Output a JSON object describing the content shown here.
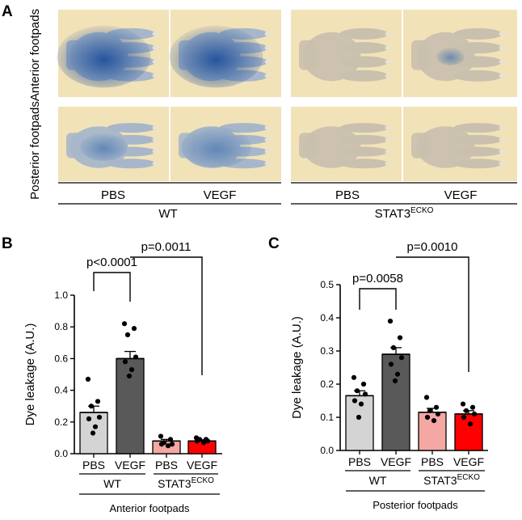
{
  "panelA": {
    "letter": "A",
    "rows": [
      "Anterior footpads",
      "Posterior footpads"
    ],
    "treatments": [
      "PBS",
      "VEGF",
      "PBS",
      "VEGF"
    ],
    "genotypes": [
      {
        "main": "WT",
        "sup": ""
      },
      {
        "main": "STAT3",
        "sup": "ECKO"
      }
    ],
    "photo_colors": {
      "background": "#f2e2b8",
      "paw_wt": "#a7b7c9",
      "paw_ko": "#c9c0ae",
      "dye_blue": "#2f5fa6"
    }
  },
  "chart_data": [
    {
      "type": "bar",
      "letter": "B",
      "ylabel": "Dye leakage (A.U.)",
      "ylim": [
        0,
        1.0
      ],
      "yticks": [
        "0.0",
        "0.2",
        "0.4",
        "0.6",
        "0.8",
        "1.0"
      ],
      "categories": [
        "PBS",
        "VEGF",
        "PBS",
        "VEGF"
      ],
      "groups": [
        {
          "main": "WT",
          "sup": ""
        },
        {
          "main": "STAT3",
          "sup": "ECKO"
        }
      ],
      "footer": "Anterior footpads",
      "values": [
        0.26,
        0.6,
        0.08,
        0.08
      ],
      "errors": [
        0.04,
        0.045,
        0.01,
        0.008
      ],
      "colors": [
        "#d4d4d4",
        "#595959",
        "#f4a7a3",
        "#ff0000"
      ],
      "points": [
        [
          0.47,
          0.33,
          0.3,
          0.23,
          0.22,
          0.17,
          0.13
        ],
        [
          0.82,
          0.79,
          0.75,
          0.61,
          0.58,
          0.53,
          0.49
        ],
        [
          0.11,
          0.09,
          0.07,
          0.06,
          0.06,
          0.05
        ],
        [
          0.1,
          0.09,
          0.09,
          0.08,
          0.08,
          0.07
        ]
      ],
      "comparisons": [
        {
          "from": 0,
          "to": 1,
          "label": "p<0.0001"
        },
        {
          "from": 1,
          "to": 3,
          "label": "p=0.0011"
        }
      ]
    },
    {
      "type": "bar",
      "letter": "C",
      "ylabel": "Dye leakage (A.U.)",
      "ylim": [
        0,
        0.5
      ],
      "yticks": [
        "0.0",
        "0.1",
        "0.2",
        "0.3",
        "0.4",
        "0.5"
      ],
      "categories": [
        "PBS",
        "VEGF",
        "PBS",
        "VEGF"
      ],
      "groups": [
        {
          "main": "WT",
          "sup": ""
        },
        {
          "main": "STAT3",
          "sup": "ECKO"
        }
      ],
      "footer": "Posterior footpads",
      "values": [
        0.165,
        0.29,
        0.115,
        0.11
      ],
      "errors": [
        0.015,
        0.02,
        0.012,
        0.01
      ],
      "colors": [
        "#d4d4d4",
        "#595959",
        "#f4a7a3",
        "#ff0000"
      ],
      "points": [
        [
          0.22,
          0.2,
          0.18,
          0.17,
          0.15,
          0.14,
          0.1
        ],
        [
          0.39,
          0.34,
          0.31,
          0.28,
          0.26,
          0.23,
          0.21
        ],
        [
          0.16,
          0.13,
          0.12,
          0.11,
          0.1,
          0.09
        ],
        [
          0.14,
          0.13,
          0.12,
          0.11,
          0.1,
          0.08
        ]
      ],
      "comparisons": [
        {
          "from": 0,
          "to": 1,
          "label": "p=0.0058"
        },
        {
          "from": 1,
          "to": 3,
          "label": "p=0.0010"
        }
      ]
    }
  ]
}
